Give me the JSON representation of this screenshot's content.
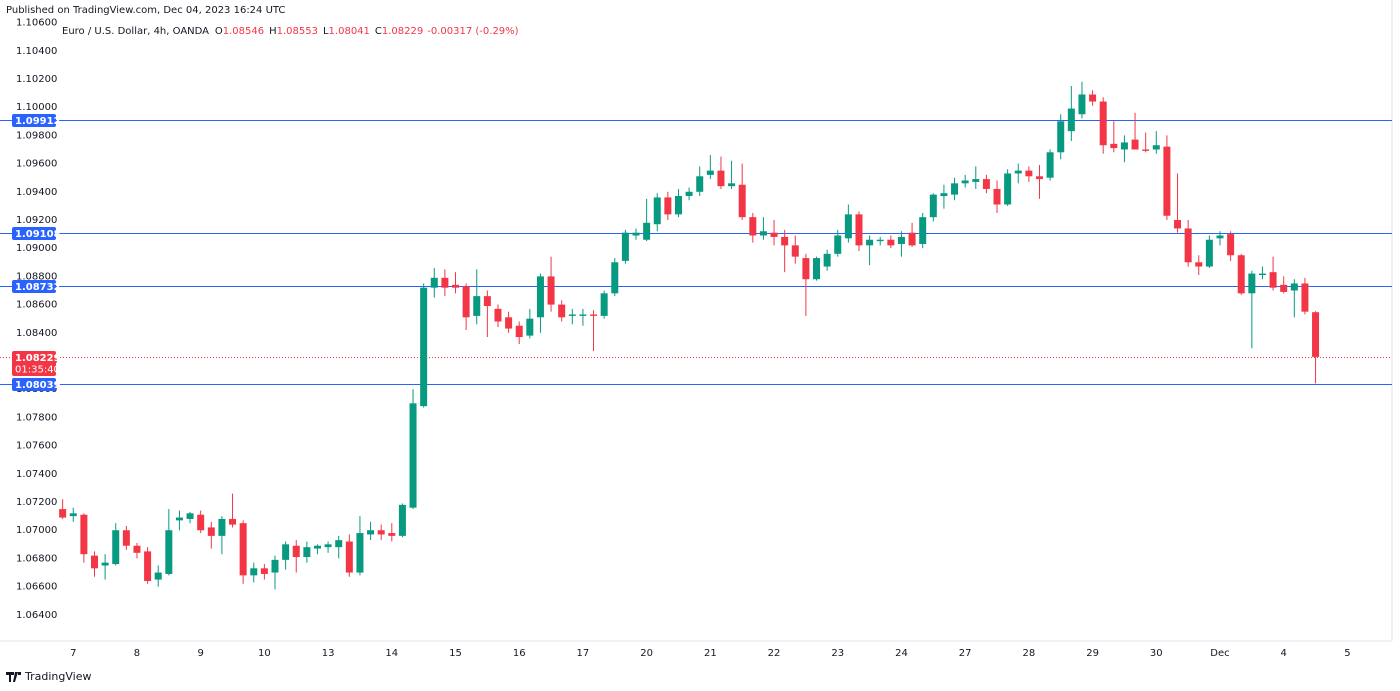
{
  "chart_data": {
    "type": "candlestick",
    "published": "Published on TradingView.com, Dec 04, 2023 16:24 UTC",
    "title": "Euro / U.S. Dollar, 4h, OANDA",
    "summary": [
      {
        "label": "O",
        "value": 1.08546
      },
      {
        "label": "H",
        "value": 1.08553
      },
      {
        "label": "L",
        "value": 1.08041
      },
      {
        "label": "C",
        "value": 1.08229
      }
    ],
    "change": "-0.00317 (-0.29%)",
    "brand": "TradingView",
    "up_color": "#089981",
    "down_color": "#f23645",
    "level_color": "#2962ff",
    "grid": true,
    "ylim": [
      1.0625,
      1.1076
    ],
    "xlim": [
      -5.9,
      125.2
    ],
    "yticks": [
      {
        "value": 1.064,
        "label": "1.06400"
      },
      {
        "value": 1.066,
        "label": "1.06600"
      },
      {
        "value": 1.068,
        "label": "1.06800"
      },
      {
        "value": 1.07,
        "label": "1.07000"
      },
      {
        "value": 1.072,
        "label": "1.07200"
      },
      {
        "value": 1.074,
        "label": "1.07400"
      },
      {
        "value": 1.076,
        "label": "1.07600"
      },
      {
        "value": 1.078,
        "label": "1.07800"
      },
      {
        "value": 1.08,
        "label": "1.08000"
      },
      {
        "value": 1.082,
        "label": "1.08200"
      },
      {
        "value": 1.084,
        "label": "1.08400"
      },
      {
        "value": 1.086,
        "label": "1.08600"
      },
      {
        "value": 1.088,
        "label": "1.08800"
      },
      {
        "value": 1.09,
        "label": "1.09000"
      },
      {
        "value": 1.092,
        "label": "1.09200"
      },
      {
        "value": 1.094,
        "label": "1.09400"
      },
      {
        "value": 1.096,
        "label": "1.09600"
      },
      {
        "value": 1.098,
        "label": "1.09800"
      },
      {
        "value": 1.1,
        "label": "1.10000"
      },
      {
        "value": 1.102,
        "label": "1.10200"
      },
      {
        "value": 1.104,
        "label": "1.10400"
      },
      {
        "value": 1.106,
        "label": "1.10600"
      }
    ],
    "xticks": [
      {
        "value": 1,
        "label": "7"
      },
      {
        "value": 7,
        "label": "8"
      },
      {
        "value": 13,
        "label": "9"
      },
      {
        "value": 19,
        "label": "10"
      },
      {
        "value": 25,
        "label": "13"
      },
      {
        "value": 31,
        "label": "14"
      },
      {
        "value": 37,
        "label": "15"
      },
      {
        "value": 43,
        "label": "16"
      },
      {
        "value": 49,
        "label": "17"
      },
      {
        "value": 55,
        "label": "20"
      },
      {
        "value": 61,
        "label": "21"
      },
      {
        "value": 67,
        "label": "22"
      },
      {
        "value": 73,
        "label": "23"
      },
      {
        "value": 79,
        "label": "24"
      },
      {
        "value": 85,
        "label": "27"
      },
      {
        "value": 91,
        "label": "28"
      },
      {
        "value": 97,
        "label": "29"
      },
      {
        "value": 103,
        "label": "30"
      },
      {
        "value": 109,
        "label": "Dec"
      },
      {
        "value": 115,
        "label": "4"
      },
      {
        "value": 121,
        "label": "5"
      }
    ],
    "levels": [
      1.09912,
      1.09108,
      1.08732,
      1.08039
    ],
    "last_price": 1.08229,
    "countdown": "01:35:40",
    "open": [
      1.0715,
      1.071,
      1.0711,
      1.0682,
      1.0675,
      1.0676,
      1.07,
      1.0689,
      1.0685,
      1.0665,
      1.0669,
      1.0707,
      1.0708,
      1.0711,
      1.0702,
      1.0696,
      1.0708,
      1.0705,
      1.0668,
      1.0673,
      1.067,
      1.0679,
      1.0689,
      1.0681,
      1.0687,
      1.0688,
      1.0688,
      1.0692,
      1.067,
      1.0697,
      1.07,
      1.0698,
      1.0696,
      1.0716,
      1.0788,
      1.0872,
      1.0879,
      1.0874,
      1.0873,
      1.0852,
      1.0866,
      1.0857,
      1.0851,
      1.0845,
      1.0838,
      1.0851,
      1.088,
      1.086,
      1.0852,
      1.0852,
      1.0853,
      1.0852,
      1.0868,
      1.0891,
      1.0909,
      1.0906,
      1.0917,
      1.0936,
      1.0924,
      1.0937,
      1.094,
      1.0952,
      1.0955,
      1.0944,
      1.0945,
      1.0922,
      1.0909,
      1.0911,
      1.0908,
      1.0902,
      1.0893,
      1.0878,
      1.0887,
      1.0896,
      1.0907,
      1.0924,
      1.0902,
      1.0905,
      1.0906,
      1.0903,
      1.0911,
      1.0903,
      1.0922,
      1.0937,
      1.0938,
      1.0946,
      1.0947,
      1.0949,
      1.0942,
      1.0931,
      1.0953,
      1.0955,
      1.0951,
      1.095,
      1.0968,
      1.0983,
      1.0995,
      1.1009,
      1.1004,
      1.0974,
      1.097,
      1.0977,
      1.097,
      1.097,
      1.0972,
      1.092,
      1.0914,
      1.089,
      1.0887,
      1.0907,
      1.091,
      1.0895,
      1.0868,
      1.0881,
      1.0883,
      1.0874,
      1.087,
      1.0875,
      1.08546
    ],
    "high": [
      1.0722,
      1.0716,
      1.0712,
      1.0685,
      1.0683,
      1.0705,
      1.0703,
      1.0691,
      1.0688,
      1.0675,
      1.0715,
      1.0714,
      1.0713,
      1.0714,
      1.0706,
      1.071,
      1.0726,
      1.0707,
      1.0677,
      1.0676,
      1.0682,
      1.0692,
      1.0693,
      1.0692,
      1.069,
      1.0692,
      1.0696,
      1.0697,
      1.071,
      1.0706,
      1.0704,
      1.0705,
      1.0719,
      1.08,
      1.0875,
      1.0886,
      1.0885,
      1.0883,
      1.0875,
      1.0885,
      1.087,
      1.086,
      1.0855,
      1.0848,
      1.0857,
      1.0882,
      1.0894,
      1.0863,
      1.0857,
      1.0857,
      1.0856,
      1.087,
      1.0893,
      1.0913,
      1.0914,
      1.0935,
      1.0939,
      1.094,
      1.0942,
      1.0943,
      1.0958,
      1.0966,
      1.0965,
      1.0962,
      1.096,
      1.0925,
      1.0922,
      1.092,
      1.0913,
      1.0909,
      1.0896,
      1.0894,
      1.0899,
      1.0913,
      1.0931,
      1.0926,
      1.0909,
      1.0908,
      1.0909,
      1.0912,
      1.0918,
      1.0925,
      1.0939,
      1.0945,
      1.095,
      1.0952,
      1.0958,
      1.0952,
      1.0948,
      1.0956,
      1.096,
      1.0958,
      1.0959,
      1.097,
      1.0995,
      1.1015,
      1.1018,
      1.1012,
      1.1007,
      1.099,
      1.098,
      1.0996,
      1.0982,
      1.0983,
      1.098,
      1.0953,
      1.092,
      1.0895,
      1.0909,
      1.0912,
      1.0912,
      1.0896,
      1.0884,
      1.0887,
      1.0894,
      1.088,
      1.0878,
      1.0879,
      1.08553
    ],
    "low": [
      1.0708,
      1.0706,
      1.0677,
      1.0667,
      1.0665,
      1.0675,
      1.0686,
      1.068,
      1.0662,
      1.066,
      1.0668,
      1.07,
      1.0705,
      1.0698,
      1.0687,
      1.0683,
      1.0702,
      1.0662,
      1.0663,
      1.0665,
      1.0658,
      1.0672,
      1.067,
      1.0677,
      1.0683,
      1.0684,
      1.068,
      1.0667,
      1.0668,
      1.0693,
      1.0693,
      1.0692,
      1.0695,
      1.0715,
      1.0787,
      1.0865,
      1.0866,
      1.0868,
      1.0842,
      1.0846,
      1.0837,
      1.0844,
      1.084,
      1.0832,
      1.0836,
      1.084,
      1.0855,
      1.0848,
      1.0846,
      1.0845,
      1.0827,
      1.085,
      1.0866,
      1.0889,
      1.0906,
      1.0905,
      1.0912,
      1.092,
      1.0922,
      1.0934,
      1.0937,
      1.0949,
      1.0942,
      1.0942,
      1.092,
      1.0904,
      1.0906,
      1.0902,
      1.0883,
      1.0889,
      1.0852,
      1.0877,
      1.0884,
      1.0894,
      1.0904,
      1.0898,
      1.0888,
      1.0902,
      1.09,
      1.0894,
      1.0901,
      1.09,
      1.0919,
      1.0928,
      1.0934,
      1.0943,
      1.0942,
      1.0939,
      1.0925,
      1.093,
      1.0946,
      1.0947,
      1.0935,
      1.0948,
      1.0963,
      1.0976,
      1.0992,
      1.1001,
      1.0967,
      1.0968,
      1.0961,
      1.097,
      1.0968,
      1.0967,
      1.092,
      1.0911,
      1.0887,
      1.0881,
      1.0886,
      1.0902,
      1.0891,
      1.0867,
      1.0829,
      1.0878,
      1.087,
      1.0868,
      1.0851,
      1.0853,
      1.08041
    ],
    "close": [
      1.0709,
      1.0712,
      1.0683,
      1.0673,
      1.0677,
      1.07,
      1.0689,
      1.0684,
      1.0664,
      1.067,
      1.07,
      1.0709,
      1.0712,
      1.07,
      1.0696,
      1.0708,
      1.0704,
      1.0668,
      1.0673,
      1.0669,
      1.0679,
      1.069,
      1.0681,
      1.0688,
      1.0689,
      1.069,
      1.0693,
      1.067,
      1.0698,
      1.07,
      1.0697,
      1.0696,
      1.0718,
      1.079,
      1.0872,
      1.0879,
      1.0872,
      1.0872,
      1.0851,
      1.0866,
      1.0859,
      1.0848,
      1.0843,
      1.0837,
      1.085,
      1.088,
      1.086,
      1.0851,
      1.0853,
      1.0853,
      1.0852,
      1.0868,
      1.089,
      1.0911,
      1.0911,
      1.0918,
      1.0936,
      1.0924,
      1.0937,
      1.094,
      1.0951,
      1.0955,
      1.0944,
      1.0946,
      1.0922,
      1.0909,
      1.0912,
      1.0908,
      1.0902,
      1.0894,
      1.0878,
      1.0893,
      1.0896,
      1.0909,
      1.0924,
      1.0902,
      1.0906,
      1.0906,
      1.0902,
      1.0908,
      1.0902,
      1.0922,
      1.0938,
      1.0939,
      1.0946,
      1.0948,
      1.0949,
      1.0942,
      1.0931,
      1.0953,
      1.0955,
      1.0951,
      1.0949,
      1.0968,
      1.099,
      1.0999,
      1.1009,
      1.1004,
      1.0973,
      1.0971,
      1.0975,
      1.097,
      1.0969,
      1.0973,
      1.0923,
      1.0914,
      1.089,
      1.0887,
      1.0906,
      1.0909,
      1.0895,
      1.0868,
      1.0882,
      1.0882,
      1.0872,
      1.0869,
      1.0875,
      1.0855,
      1.08229
    ]
  }
}
